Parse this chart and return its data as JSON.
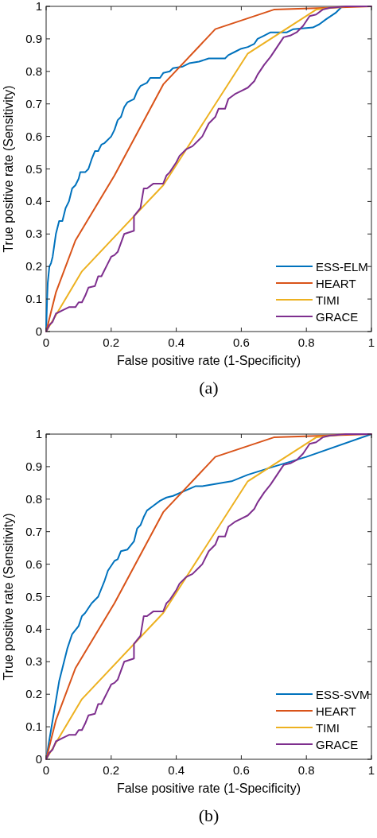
{
  "chart_data": [
    {
      "type": "line",
      "xlabel": "False positive rate (1-Specificity)",
      "ylabel": "True positive rate (Sensitivity)",
      "annotations": [
        "(a)"
      ],
      "xlim": [
        0,
        1
      ],
      "ylim": [
        0,
        1
      ],
      "xticks": [
        0,
        0.2,
        0.4,
        0.6,
        0.8,
        1
      ],
      "yticks": [
        0,
        0.1,
        0.2,
        0.3,
        0.4,
        0.5,
        0.6,
        0.7,
        0.8,
        0.9,
        1
      ],
      "legend": "bottom right",
      "grid": false,
      "series": [
        {
          "name": "ESS-ELM",
          "color": "#0072bd",
          "x": [
            0,
            0.003,
            0.005,
            0.01,
            0.015,
            0.02,
            0.03,
            0.04,
            0.05,
            0.06,
            0.07,
            0.08,
            0.09,
            0.1,
            0.105,
            0.12,
            0.13,
            0.14,
            0.15,
            0.16,
            0.17,
            0.18,
            0.2,
            0.21,
            0.22,
            0.23,
            0.24,
            0.25,
            0.27,
            0.28,
            0.29,
            0.31,
            0.32,
            0.35,
            0.36,
            0.38,
            0.39,
            0.42,
            0.44,
            0.47,
            0.5,
            0.55,
            0.56,
            0.58,
            0.6,
            0.62,
            0.64,
            0.65,
            0.67,
            0.69,
            0.74,
            0.76,
            0.82,
            0.84,
            0.86,
            0.89,
            0.91,
            1
          ],
          "values": [
            0,
            0.1,
            0.15,
            0.2,
            0.21,
            0.23,
            0.3,
            0.34,
            0.34,
            0.38,
            0.4,
            0.44,
            0.45,
            0.47,
            0.49,
            0.49,
            0.5,
            0.53,
            0.555,
            0.555,
            0.575,
            0.58,
            0.6,
            0.62,
            0.65,
            0.66,
            0.69,
            0.705,
            0.715,
            0.74,
            0.755,
            0.765,
            0.78,
            0.78,
            0.795,
            0.8,
            0.81,
            0.815,
            0.825,
            0.83,
            0.84,
            0.84,
            0.85,
            0.86,
            0.87,
            0.875,
            0.885,
            0.9,
            0.91,
            0.92,
            0.92,
            0.93,
            0.935,
            0.945,
            0.96,
            0.98,
            1,
            1
          ]
        },
        {
          "name": "HEART",
          "color": "#d95319",
          "x": [
            0,
            0.03,
            0.09,
            0.21,
            0.36,
            0.52,
            0.7,
            1
          ],
          "values": [
            0,
            0.12,
            0.28,
            0.48,
            0.76,
            0.93,
            0.99,
            1
          ]
        },
        {
          "name": "TIMI",
          "color": "#edb120",
          "x": [
            0,
            0.11,
            0.36,
            0.62,
            0.83,
            0.92,
            1
          ],
          "values": [
            0,
            0.185,
            0.45,
            0.855,
            0.99,
            1,
            1
          ]
        },
        {
          "name": "GRACE",
          "color": "#7e2f8e",
          "x": [
            0,
            0.01,
            0.02,
            0.03,
            0.05,
            0.07,
            0.09,
            0.1,
            0.11,
            0.12,
            0.13,
            0.15,
            0.16,
            0.17,
            0.18,
            0.19,
            0.2,
            0.21,
            0.22,
            0.24,
            0.27,
            0.27,
            0.29,
            0.3,
            0.31,
            0.33,
            0.36,
            0.37,
            0.38,
            0.4,
            0.41,
            0.43,
            0.45,
            0.47,
            0.48,
            0.5,
            0.52,
            0.53,
            0.55,
            0.56,
            0.58,
            0.6,
            0.62,
            0.64,
            0.65,
            0.67,
            0.69,
            0.71,
            0.73,
            0.75,
            0.77,
            0.79,
            0.81,
            0.83,
            0.85,
            0.87,
            0.92,
            1
          ],
          "values": [
            0,
            0.02,
            0.03,
            0.055,
            0.065,
            0.075,
            0.075,
            0.09,
            0.09,
            0.11,
            0.135,
            0.14,
            0.17,
            0.17,
            0.19,
            0.21,
            0.23,
            0.235,
            0.245,
            0.3,
            0.31,
            0.355,
            0.38,
            0.44,
            0.44,
            0.455,
            0.455,
            0.48,
            0.49,
            0.52,
            0.54,
            0.56,
            0.57,
            0.59,
            0.6,
            0.64,
            0.66,
            0.685,
            0.685,
            0.715,
            0.73,
            0.74,
            0.75,
            0.77,
            0.79,
            0.82,
            0.845,
            0.875,
            0.905,
            0.91,
            0.92,
            0.94,
            0.97,
            0.975,
            0.99,
            0.995,
            1,
            1
          ]
        }
      ]
    },
    {
      "type": "line",
      "xlabel": "False positive rate (1-Specificity)",
      "ylabel": "True positive rate (Sensitivity)",
      "annotations": [
        "(b)"
      ],
      "xlim": [
        0,
        1
      ],
      "ylim": [
        0,
        1
      ],
      "xticks": [
        0,
        0.2,
        0.4,
        0.6,
        0.8,
        1
      ],
      "yticks": [
        0,
        0.1,
        0.2,
        0.3,
        0.4,
        0.5,
        0.6,
        0.7,
        0.8,
        0.9,
        1
      ],
      "legend": "bottom right",
      "grid": false,
      "series": [
        {
          "name": "ESS-SVM",
          "color": "#0072bd",
          "x": [
            0,
            0.02,
            0.04,
            0.065,
            0.08,
            0.1,
            0.11,
            0.12,
            0.14,
            0.16,
            0.18,
            0.19,
            0.21,
            0.22,
            0.23,
            0.25,
            0.27,
            0.28,
            0.29,
            0.3,
            0.31,
            0.33,
            0.35,
            0.37,
            0.39,
            0.46,
            0.48,
            0.57,
            0.62,
            0.7,
            0.8,
            1
          ],
          "values": [
            0,
            0.12,
            0.24,
            0.34,
            0.385,
            0.41,
            0.44,
            0.45,
            0.48,
            0.5,
            0.55,
            0.58,
            0.61,
            0.615,
            0.64,
            0.645,
            0.67,
            0.71,
            0.72,
            0.745,
            0.765,
            0.78,
            0.795,
            0.805,
            0.81,
            0.84,
            0.84,
            0.855,
            0.875,
            0.9,
            0.93,
            1
          ]
        },
        {
          "name": "HEART",
          "color": "#d95319",
          "x": [
            0,
            0.03,
            0.09,
            0.21,
            0.36,
            0.52,
            0.7,
            1
          ],
          "values": [
            0,
            0.12,
            0.28,
            0.48,
            0.76,
            0.93,
            0.99,
            1
          ]
        },
        {
          "name": "TIMI",
          "color": "#edb120",
          "x": [
            0,
            0.11,
            0.36,
            0.62,
            0.83,
            0.92,
            1
          ],
          "values": [
            0,
            0.185,
            0.45,
            0.855,
            0.99,
            1,
            1
          ]
        },
        {
          "name": "GRACE",
          "color": "#7e2f8e",
          "x": [
            0,
            0.01,
            0.02,
            0.03,
            0.05,
            0.07,
            0.09,
            0.1,
            0.11,
            0.12,
            0.13,
            0.15,
            0.16,
            0.17,
            0.18,
            0.19,
            0.2,
            0.21,
            0.22,
            0.24,
            0.27,
            0.27,
            0.29,
            0.3,
            0.31,
            0.33,
            0.36,
            0.37,
            0.38,
            0.4,
            0.41,
            0.43,
            0.45,
            0.47,
            0.48,
            0.5,
            0.52,
            0.53,
            0.55,
            0.56,
            0.58,
            0.6,
            0.62,
            0.64,
            0.65,
            0.67,
            0.69,
            0.71,
            0.73,
            0.75,
            0.77,
            0.79,
            0.81,
            0.83,
            0.85,
            0.87,
            0.92,
            1
          ],
          "values": [
            0,
            0.02,
            0.03,
            0.055,
            0.065,
            0.075,
            0.075,
            0.09,
            0.09,
            0.11,
            0.135,
            0.14,
            0.17,
            0.17,
            0.19,
            0.21,
            0.23,
            0.235,
            0.245,
            0.3,
            0.31,
            0.355,
            0.38,
            0.44,
            0.44,
            0.455,
            0.455,
            0.48,
            0.49,
            0.52,
            0.54,
            0.56,
            0.57,
            0.59,
            0.6,
            0.64,
            0.66,
            0.685,
            0.685,
            0.715,
            0.73,
            0.74,
            0.75,
            0.77,
            0.79,
            0.82,
            0.845,
            0.875,
            0.905,
            0.91,
            0.92,
            0.94,
            0.97,
            0.975,
            0.99,
            0.995,
            1,
            1
          ]
        }
      ]
    }
  ]
}
